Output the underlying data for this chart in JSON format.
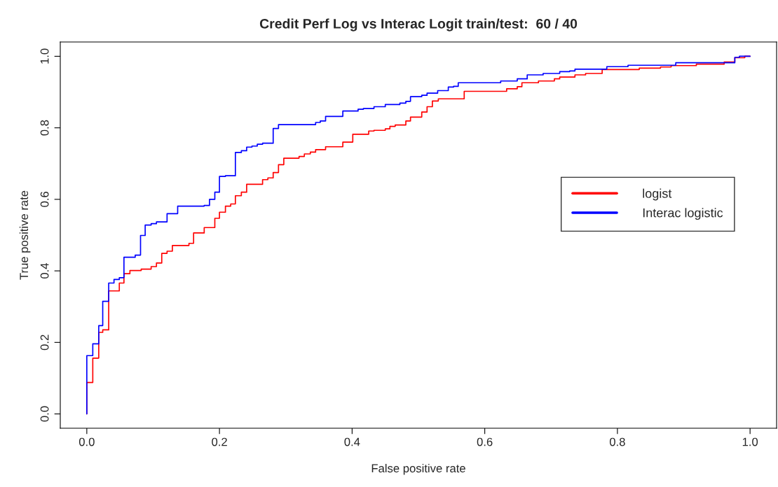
{
  "chart_data": {
    "type": "step",
    "title": "Credit Perf Log vs Interac Logit train/test:  60 / 40",
    "xlabel": "False positive rate",
    "ylabel": "True positive rate",
    "xlim": [
      -0.04,
      1.04
    ],
    "ylim": [
      -0.04,
      1.04
    ],
    "xticks": [
      {
        "value": 0,
        "label": "0.0"
      },
      {
        "value": 0.2,
        "label": "0.2"
      },
      {
        "value": 0.4,
        "label": "0.4"
      },
      {
        "value": 0.6,
        "label": "0.6"
      },
      {
        "value": 0.8,
        "label": "0.8"
      },
      {
        "value": 1,
        "label": "1.0"
      }
    ],
    "yticks": [
      {
        "value": 0,
        "label": "0.0"
      },
      {
        "value": 0.2,
        "label": "0.2"
      },
      {
        "value": 0.4,
        "label": "0.4"
      },
      {
        "value": 0.6,
        "label": "0.6"
      },
      {
        "value": 0.8,
        "label": "0.8"
      },
      {
        "value": 1,
        "label": "1.0"
      }
    ],
    "grid": false,
    "legend": "center right",
    "marker": "none",
    "line_style": "solid",
    "series": [
      {
        "name": "logist",
        "color": "#ff0000",
        "x": [
          0,
          0,
          0.009,
          0.018,
          0.024,
          0.033,
          0.049,
          0.056,
          0.065,
          0.082,
          0.097,
          0.105,
          0.113,
          0.121,
          0.129,
          0.154,
          0.161,
          0.177,
          0.193,
          0.2,
          0.209,
          0.217,
          0.224,
          0.233,
          0.241,
          0.265,
          0.273,
          0.281,
          0.289,
          0.297,
          0.32,
          0.328,
          0.337,
          0.345,
          0.36,
          0.386,
          0.401,
          0.425,
          0.433,
          0.45,
          0.457,
          0.465,
          0.481,
          0.488,
          0.505,
          0.513,
          0.521,
          0.53,
          0.569,
          0.633,
          0.649,
          0.656,
          0.681,
          0.705,
          0.713,
          0.736,
          0.752,
          0.777,
          0.833,
          0.865,
          0.881,
          0.919,
          0.961,
          0.977,
          0.992,
          1.0
        ],
        "values": [
          0,
          0.088,
          0.156,
          0.228,
          0.235,
          0.344,
          0.366,
          0.392,
          0.401,
          0.405,
          0.412,
          0.422,
          0.449,
          0.455,
          0.471,
          0.477,
          0.506,
          0.521,
          0.547,
          0.564,
          0.581,
          0.587,
          0.61,
          0.62,
          0.642,
          0.655,
          0.66,
          0.675,
          0.697,
          0.715,
          0.72,
          0.727,
          0.732,
          0.739,
          0.747,
          0.76,
          0.782,
          0.791,
          0.793,
          0.797,
          0.804,
          0.808,
          0.819,
          0.83,
          0.844,
          0.859,
          0.875,
          0.881,
          0.902,
          0.909,
          0.915,
          0.926,
          0.931,
          0.937,
          0.942,
          0.948,
          0.952,
          0.963,
          0.967,
          0.97,
          0.974,
          0.978,
          0.984,
          0.996,
          1.0,
          1.0
        ]
      },
      {
        "name": "Interac logistic",
        "color": "#0000ff",
        "x": [
          0,
          0,
          0.009,
          0.018,
          0.024,
          0.033,
          0.041,
          0.049,
          0.056,
          0.073,
          0.081,
          0.088,
          0.097,
          0.105,
          0.121,
          0.137,
          0.177,
          0.185,
          0.193,
          0.2,
          0.209,
          0.224,
          0.233,
          0.241,
          0.249,
          0.257,
          0.265,
          0.281,
          0.289,
          0.345,
          0.352,
          0.36,
          0.386,
          0.409,
          0.417,
          0.433,
          0.45,
          0.472,
          0.481,
          0.488,
          0.505,
          0.513,
          0.529,
          0.545,
          0.553,
          0.56,
          0.624,
          0.649,
          0.664,
          0.688,
          0.713,
          0.728,
          0.736,
          0.784,
          0.816,
          0.888,
          0.977,
          0.984,
          1.0
        ],
        "values": [
          0,
          0.163,
          0.196,
          0.247,
          0.315,
          0.366,
          0.376,
          0.381,
          0.438,
          0.444,
          0.499,
          0.528,
          0.532,
          0.537,
          0.56,
          0.581,
          0.583,
          0.6,
          0.62,
          0.664,
          0.666,
          0.731,
          0.736,
          0.746,
          0.749,
          0.754,
          0.757,
          0.798,
          0.809,
          0.815,
          0.819,
          0.832,
          0.847,
          0.852,
          0.854,
          0.859,
          0.865,
          0.869,
          0.874,
          0.887,
          0.891,
          0.897,
          0.904,
          0.914,
          0.916,
          0.926,
          0.931,
          0.937,
          0.948,
          0.952,
          0.957,
          0.959,
          0.964,
          0.971,
          0.975,
          0.982,
          0.997,
          1.0,
          1.0
        ]
      }
    ]
  }
}
